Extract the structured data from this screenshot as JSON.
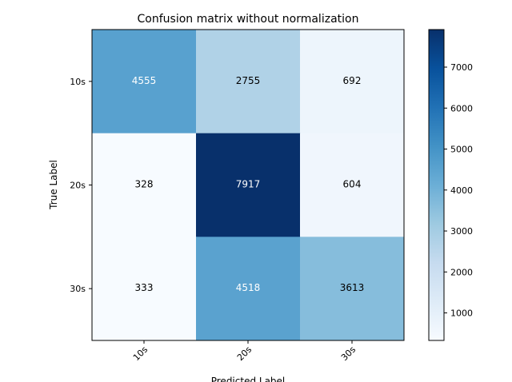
{
  "chart_data": {
    "type": "heatmap",
    "title": "Confusion matrix without normalization",
    "xlabel": "Predicted Label",
    "ylabel": "True Label",
    "x_categories": [
      "10s",
      "20s",
      "30s"
    ],
    "y_categories": [
      "10s",
      "20s",
      "30s"
    ],
    "values": [
      [
        4555,
        2755,
        692
      ],
      [
        328,
        7917,
        604
      ],
      [
        333,
        4518,
        3613
      ]
    ],
    "colormap": "Blues",
    "colorbar": {
      "range": [
        328,
        7917
      ],
      "ticks": [
        1000,
        2000,
        3000,
        4000,
        5000,
        6000,
        7000
      ],
      "tick_labels": [
        "1000",
        "2000",
        "3000",
        "4000",
        "5000",
        "6000",
        "7000"
      ]
    },
    "text_color_light": "#ffffff",
    "text_color_dark": "#000000"
  }
}
